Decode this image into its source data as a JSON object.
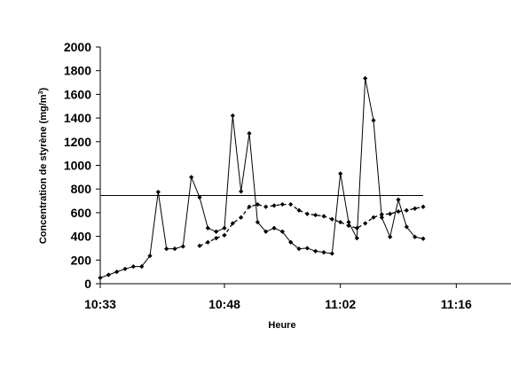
{
  "chart_data": {
    "type": "line",
    "title": "",
    "xlabel": "Heure",
    "ylabel": "Concentration de styrène (mg/m³)",
    "ylabel_main": "Concentration de styrène (mg/m",
    "ylabel_sup": "3",
    "ylabel_end": ")",
    "x_unit": "minutes",
    "xlim": [
      0,
      56
    ],
    "ylim": [
      0,
      2000
    ],
    "y_ticks": [
      0,
      200,
      400,
      600,
      800,
      1000,
      1200,
      1400,
      1600,
      1800,
      2000
    ],
    "x_ticks": [
      {
        "x": 0,
        "label": "10:33"
      },
      {
        "x": 15,
        "label": "10:48"
      },
      {
        "x": 29,
        "label": "11:02"
      },
      {
        "x": 43,
        "label": "11:16"
      }
    ],
    "grid": false,
    "legend": false,
    "series": [
      {
        "style": "solid-markers",
        "points": [
          [
            0,
            50
          ],
          [
            1,
            75
          ],
          [
            2,
            100
          ],
          [
            3,
            125
          ],
          [
            4,
            145
          ],
          [
            5,
            145
          ],
          [
            6,
            235
          ],
          [
            7,
            775
          ],
          [
            8,
            295
          ],
          [
            9,
            295
          ],
          [
            10,
            315
          ],
          [
            11,
            900
          ],
          [
            12,
            730
          ],
          [
            13,
            470
          ],
          [
            14,
            440
          ],
          [
            15,
            470
          ],
          [
            16,
            1420
          ],
          [
            17,
            780
          ],
          [
            18,
            1270
          ],
          [
            19,
            520
          ],
          [
            20,
            440
          ],
          [
            21,
            470
          ],
          [
            22,
            440
          ],
          [
            23,
            350
          ],
          [
            24,
            295
          ],
          [
            25,
            300
          ],
          [
            26,
            275
          ],
          [
            27,
            265
          ],
          [
            28,
            255
          ],
          [
            29,
            930
          ],
          [
            30,
            520
          ],
          [
            31,
            385
          ],
          [
            32,
            1735
          ],
          [
            33,
            1380
          ],
          [
            34,
            560
          ],
          [
            35,
            395
          ],
          [
            36,
            710
          ],
          [
            37,
            480
          ],
          [
            38,
            395
          ],
          [
            39,
            380
          ]
        ]
      },
      {
        "style": "dashed-markers",
        "points": [
          [
            12,
            320
          ],
          [
            13,
            350
          ],
          [
            14,
            385
          ],
          [
            15,
            410
          ],
          [
            16,
            510
          ],
          [
            17,
            560
          ],
          [
            18,
            650
          ],
          [
            19,
            670
          ],
          [
            20,
            650
          ],
          [
            21,
            660
          ],
          [
            22,
            670
          ],
          [
            23,
            670
          ],
          [
            24,
            620
          ],
          [
            25,
            590
          ],
          [
            26,
            580
          ],
          [
            27,
            570
          ],
          [
            28,
            545
          ],
          [
            29,
            520
          ],
          [
            30,
            490
          ],
          [
            31,
            470
          ],
          [
            32,
            510
          ],
          [
            33,
            560
          ],
          [
            34,
            585
          ],
          [
            35,
            590
          ],
          [
            36,
            610
          ],
          [
            37,
            620
          ],
          [
            38,
            635
          ],
          [
            39,
            650
          ]
        ]
      },
      {
        "style": "solid-line",
        "points": [
          [
            0,
            745
          ],
          [
            39,
            745
          ]
        ]
      }
    ]
  }
}
